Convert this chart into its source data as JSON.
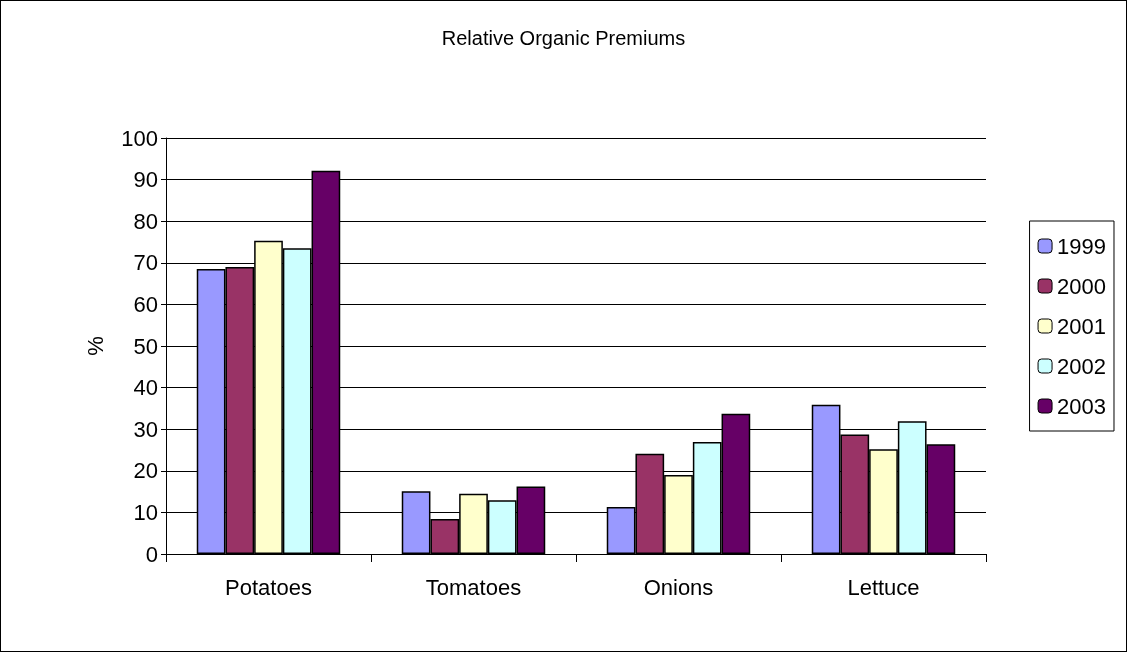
{
  "chart_data": {
    "type": "bar",
    "title": "Relative Organic Premiums",
    "ylabel": "%",
    "categories": [
      "Potatoes",
      "Tomatoes",
      "Onions",
      "Lettuce"
    ],
    "series": [
      {
        "name": "1999",
        "color": "#9999ff",
        "values": [
          68.5,
          15.1,
          11.3,
          35.9
        ]
      },
      {
        "name": "2000",
        "color": "#993366",
        "values": [
          69.0,
          8.4,
          24.1,
          28.7
        ]
      },
      {
        "name": "2001",
        "color": "#ffffcc",
        "values": [
          75.3,
          14.5,
          19.0,
          25.2
        ]
      },
      {
        "name": "2002",
        "color": "#ccffff",
        "values": [
          73.5,
          12.9,
          26.9,
          31.9
        ]
      },
      {
        "name": "2003",
        "color": "#660066",
        "values": [
          92.1,
          16.2,
          33.7,
          26.4
        ]
      }
    ],
    "ylim": [
      0,
      100
    ],
    "yticks": [
      0,
      10,
      20,
      30,
      40,
      50,
      60,
      70,
      80,
      90,
      100
    ],
    "grid": "y",
    "legend": "right"
  }
}
